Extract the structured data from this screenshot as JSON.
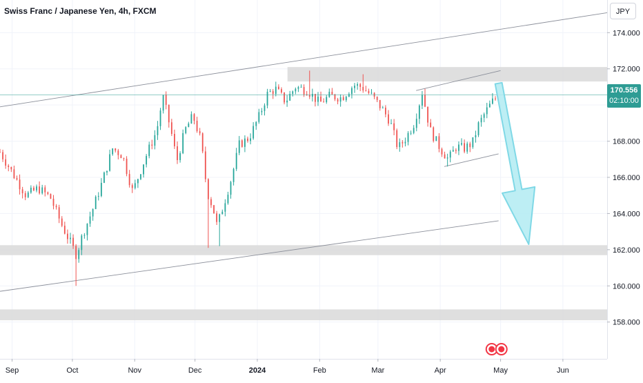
{
  "header": {
    "title": "Swiss Franc / Japanese Yen, 4h, FXCM",
    "currency_button": "JPY"
  },
  "price_label": {
    "price": "170.556",
    "countdown": "02:10:00"
  },
  "colors": {
    "up": "#26a69a",
    "down": "#ef5350",
    "zone": "#d9d9d9",
    "arrow_fill": "#b2ebf2",
    "arrow_stroke": "#7fd8e6",
    "current_price_line": "#2e9c94",
    "trendline": "#8a8e99"
  },
  "chart_data": {
    "type": "candlestick",
    "instrument": "Swiss Franc / Japanese Yen",
    "timeframe": "4h",
    "source": "FXCM",
    "y_range": [
      156.5,
      175.5
    ],
    "y_ticks": [
      {
        "value": 158,
        "label": "158.000"
      },
      {
        "value": 160,
        "label": "160.000"
      },
      {
        "value": 162,
        "label": "162.000"
      },
      {
        "value": 164,
        "label": "164.000"
      },
      {
        "value": 166,
        "label": "166.000"
      },
      {
        "value": 168,
        "label": "168.000"
      },
      {
        "value": 170,
        "label": "170.000"
      },
      {
        "value": 172,
        "label": "172.000"
      },
      {
        "value": 174,
        "label": "174.000"
      }
    ],
    "x_range": [
      "2023-08-26",
      "2024-06-23"
    ],
    "x_ticks": [
      {
        "date": "2023-09-01",
        "label": "Sep",
        "bold": false
      },
      {
        "date": "2023-10-01",
        "label": "Oct",
        "bold": false
      },
      {
        "date": "2023-11-01",
        "label": "Nov",
        "bold": false
      },
      {
        "date": "2023-12-01",
        "label": "Dec",
        "bold": false
      },
      {
        "date": "2024-01-01",
        "label": "2024",
        "bold": true
      },
      {
        "date": "2024-02-01",
        "label": "Feb",
        "bold": false
      },
      {
        "date": "2024-03-01",
        "label": "Mar",
        "bold": false
      },
      {
        "date": "2024-04-01",
        "label": "Apr",
        "bold": false
      },
      {
        "date": "2024-05-01",
        "label": "May",
        "bold": false
      },
      {
        "date": "2024-06-01",
        "label": "Jun",
        "bold": false
      }
    ],
    "last_price": 170.556,
    "price_path": [
      [
        "2023-08-26",
        167.4
      ],
      [
        "2023-09-02",
        166.1
      ],
      [
        "2023-09-08",
        165.0
      ],
      [
        "2023-09-14",
        165.4
      ],
      [
        "2023-09-20",
        164.9
      ],
      [
        "2023-09-26",
        163.3
      ],
      [
        "2023-09-30",
        162.4
      ],
      [
        "2023-10-03",
        161.7
      ],
      [
        "2023-10-06",
        162.8
      ],
      [
        "2023-10-11",
        164.2
      ],
      [
        "2023-10-16",
        165.8
      ],
      [
        "2023-10-21",
        167.6
      ],
      [
        "2023-10-26",
        167.2
      ],
      [
        "2023-10-31",
        165.2
      ],
      [
        "2023-11-06",
        167.0
      ],
      [
        "2023-11-12",
        168.6
      ],
      [
        "2023-11-15",
        170.5
      ],
      [
        "2023-11-19",
        168.6
      ],
      [
        "2023-11-22",
        166.9
      ],
      [
        "2023-11-26",
        168.6
      ],
      [
        "2023-11-30",
        169.4
      ],
      [
        "2023-12-04",
        168.0
      ],
      [
        "2023-12-07",
        165.2
      ],
      [
        "2023-12-10",
        164.3
      ],
      [
        "2023-12-12",
        163.3
      ],
      [
        "2023-12-15",
        164.4
      ],
      [
        "2023-12-19",
        165.9
      ],
      [
        "2023-12-23",
        167.8
      ],
      [
        "2023-12-28",
        168.2
      ],
      [
        "2024-01-02",
        169.4
      ],
      [
        "2024-01-06",
        170.6
      ],
      [
        "2024-01-10",
        170.9
      ],
      [
        "2024-01-15",
        170.2
      ],
      [
        "2024-01-20",
        171.0
      ],
      [
        "2024-01-26",
        170.8
      ],
      [
        "2024-02-01",
        170.1
      ],
      [
        "2024-02-06",
        170.5
      ],
      [
        "2024-02-12",
        170.4
      ],
      [
        "2024-02-18",
        171.1
      ],
      [
        "2024-02-22",
        171.0
      ],
      [
        "2024-02-27",
        170.5
      ],
      [
        "2024-03-03",
        169.8
      ],
      [
        "2024-03-07",
        169.1
      ],
      [
        "2024-03-11",
        167.6
      ],
      [
        "2024-03-15",
        168.2
      ],
      [
        "2024-03-19",
        169.0
      ],
      [
        "2024-03-23",
        170.7
      ],
      [
        "2024-03-27",
        168.6
      ],
      [
        "2024-04-01",
        167.6
      ],
      [
        "2024-04-05",
        167.0
      ],
      [
        "2024-04-09",
        167.7
      ],
      [
        "2024-04-13",
        167.6
      ],
      [
        "2024-04-17",
        167.9
      ],
      [
        "2024-04-20",
        168.9
      ],
      [
        "2024-04-24",
        169.7
      ],
      [
        "2024-04-27",
        170.2
      ],
      [
        "2024-04-30",
        170.556
      ]
    ],
    "key_lows": [
      {
        "date": "2023-10-03",
        "low": 160.0
      },
      {
        "date": "2023-12-08",
        "low": 162.1
      },
      {
        "date": "2023-12-13",
        "low": 162.2
      },
      {
        "date": "2024-04-05",
        "low": 166.6
      }
    ],
    "key_highs": [
      {
        "date": "2023-11-15",
        "high": 170.5
      },
      {
        "date": "2024-01-27",
        "high": 171.9
      },
      {
        "date": "2024-02-22",
        "high": 171.7
      },
      {
        "date": "2024-03-24",
        "high": 170.9
      }
    ],
    "zones": [
      {
        "from_date": "2024-01-16",
        "to_date": "2024-06-23",
        "top": 172.1,
        "bottom": 171.3
      },
      {
        "from_date": "2023-08-26",
        "to_date": "2024-06-23",
        "top": 162.25,
        "bottom": 161.7
      },
      {
        "from_date": "2023-08-26",
        "to_date": "2024-06-23",
        "top": 158.7,
        "bottom": 158.1
      }
    ],
    "trendlines": [
      {
        "start": [
          "2023-08-26",
          169.9
        ],
        "end": [
          "2024-06-23",
          175.1
        ]
      },
      {
        "start": [
          "2023-08-26",
          159.7
        ],
        "end": [
          "2024-04-30",
          163.6
        ]
      },
      {
        "start": [
          "2024-03-20",
          170.8
        ],
        "end": [
          "2024-05-01",
          171.9
        ]
      },
      {
        "start": [
          "2024-04-03",
          166.6
        ],
        "end": [
          "2024-04-30",
          167.3
        ]
      }
    ],
    "projection_arrow": {
      "from": [
        "2024-04-30",
        171.2
      ],
      "to": [
        "2024-05-15",
        162.3
      ]
    },
    "grid": true
  }
}
